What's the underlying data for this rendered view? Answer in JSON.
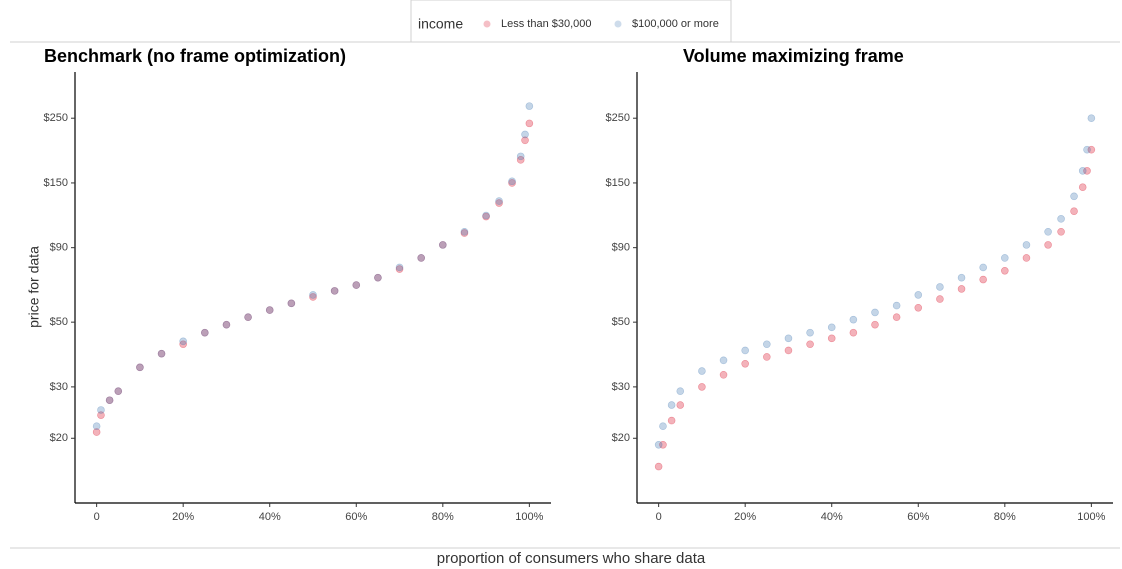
{
  "chart_data": [
    {
      "type": "scatter",
      "title": "Benchmark (no frame optimization)",
      "y_label": "price for data",
      "x_label": "proportion of consumers who share data",
      "legend_title": "income",
      "log_y": true,
      "xlim": [
        -0.05,
        1.05
      ],
      "xticks": [
        0,
        {
          "value": 0.2,
          "label": "20%"
        },
        {
          "value": 0.4,
          "label": "40%"
        },
        {
          "value": 0.6,
          "label": "60%"
        },
        {
          "value": 0.8,
          "label": "80%"
        },
        {
          "value": 1.0,
          "label": "100%"
        }
      ],
      "ylim": [
        12,
        360
      ],
      "yticks": [
        {
          "value": 20,
          "label": "$20"
        },
        {
          "value": 30,
          "label": "$30"
        },
        {
          "value": 50,
          "label": "$50"
        },
        {
          "value": 90,
          "label": "$90"
        },
        {
          "value": 150,
          "label": "$150"
        },
        {
          "value": 250,
          "label": "$250"
        }
      ],
      "series": [
        {
          "name": "Less than $30,000",
          "color": "#d6001c",
          "x": [
            0,
            0.01,
            0.03,
            0.05,
            0.1,
            0.15,
            0.2,
            0.25,
            0.3,
            0.35,
            0.4,
            0.45,
            0.5,
            0.55,
            0.6,
            0.65,
            0.7,
            0.75,
            0.8,
            0.85,
            0.9,
            0.93,
            0.96,
            0.98,
            0.99,
            1.0
          ],
          "values": [
            21,
            24,
            27,
            29,
            35,
            39,
            42,
            46,
            49,
            52,
            55,
            58,
            61,
            64,
            67,
            71,
            76,
            83,
            92,
            101,
            115,
            128,
            150,
            180,
            210,
            240
          ]
        },
        {
          "name": "$100,000 or more",
          "color": "#3a73b0",
          "x": [
            0,
            0.01,
            0.03,
            0.05,
            0.1,
            0.15,
            0.2,
            0.25,
            0.3,
            0.35,
            0.4,
            0.45,
            0.5,
            0.55,
            0.6,
            0.65,
            0.7,
            0.75,
            0.8,
            0.85,
            0.9,
            0.93,
            0.96,
            0.98,
            0.99,
            1.0
          ],
          "values": [
            22,
            25,
            27,
            29,
            35,
            39,
            43,
            46,
            49,
            52,
            55,
            58,
            62,
            64,
            67,
            71,
            77,
            83,
            92,
            102,
            116,
            130,
            152,
            185,
            220,
            275
          ]
        }
      ]
    },
    {
      "type": "scatter",
      "title": "Volume maximizing frame",
      "log_y": true,
      "xlim": [
        -0.05,
        1.05
      ],
      "xticks": [
        0,
        {
          "value": 0.2,
          "label": "20%"
        },
        {
          "value": 0.4,
          "label": "40%"
        },
        {
          "value": 0.6,
          "label": "60%"
        },
        {
          "value": 0.8,
          "label": "80%"
        },
        {
          "value": 1.0,
          "label": "100%"
        }
      ],
      "ylim": [
        12,
        360
      ],
      "yticks": [
        {
          "value": 20,
          "label": "$20"
        },
        {
          "value": 30,
          "label": "$30"
        },
        {
          "value": 50,
          "label": "$50"
        },
        {
          "value": 90,
          "label": "$90"
        },
        {
          "value": 150,
          "label": "$150"
        },
        {
          "value": 250,
          "label": "$250"
        }
      ],
      "series": [
        {
          "name": "Less than $30,000",
          "color": "#d6001c",
          "x": [
            0,
            0.01,
            0.03,
            0.05,
            0.1,
            0.15,
            0.2,
            0.25,
            0.3,
            0.35,
            0.4,
            0.45,
            0.5,
            0.55,
            0.6,
            0.65,
            0.7,
            0.75,
            0.8,
            0.85,
            0.9,
            0.93,
            0.96,
            0.98,
            0.99,
            1.0
          ],
          "values": [
            16,
            19,
            23,
            26,
            30,
            33,
            36,
            38,
            40,
            42,
            44,
            46,
            49,
            52,
            56,
            60,
            65,
            70,
            75,
            83,
            92,
            102,
            120,
            145,
            165,
            195
          ]
        },
        {
          "name": "$100,000 or more",
          "color": "#3a73b0",
          "x": [
            0,
            0.01,
            0.03,
            0.05,
            0.1,
            0.15,
            0.2,
            0.25,
            0.3,
            0.35,
            0.4,
            0.45,
            0.5,
            0.55,
            0.6,
            0.65,
            0.7,
            0.75,
            0.8,
            0.85,
            0.9,
            0.93,
            0.96,
            0.98,
            0.99,
            1.0
          ],
          "values": [
            19,
            22,
            26,
            29,
            34,
            37,
            40,
            42,
            44,
            46,
            48,
            51,
            54,
            57,
            62,
            66,
            71,
            77,
            83,
            92,
            102,
            113,
            135,
            165,
            195,
            250
          ]
        }
      ]
    }
  ]
}
